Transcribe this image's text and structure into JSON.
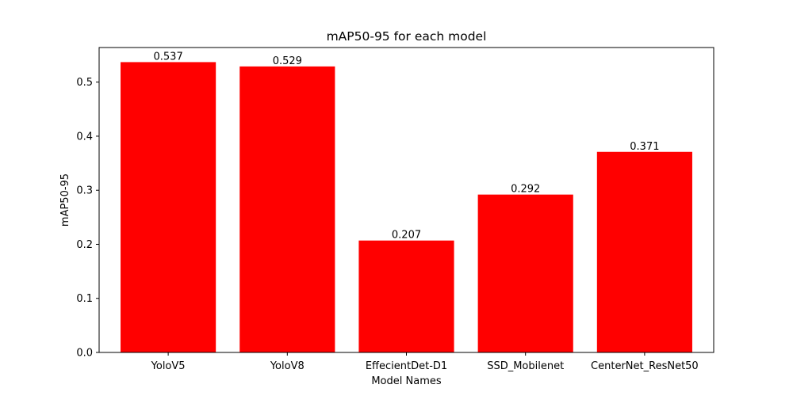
{
  "chart_data": {
    "type": "bar",
    "title": "mAP50-95 for each model",
    "xlabel": "Model Names",
    "ylabel": "mAP50-95",
    "categories": [
      "YoloV5",
      "YoloV8",
      "EffecientDet-D1",
      "SSD_Mobilenet",
      "CenterNet_ResNet50"
    ],
    "values": [
      0.537,
      0.529,
      0.207,
      0.292,
      0.371
    ],
    "value_labels": [
      "0.537",
      "0.529",
      "0.207",
      "0.292",
      "0.371"
    ],
    "ylim": [
      0,
      0.564
    ],
    "yticks": [
      0.0,
      0.1,
      0.2,
      0.3,
      0.4,
      0.5
    ],
    "ytick_labels": [
      "0.0",
      "0.1",
      "0.2",
      "0.3",
      "0.4",
      "0.5"
    ],
    "bar_color": "#ff0000",
    "grid": false,
    "legend": "none"
  }
}
